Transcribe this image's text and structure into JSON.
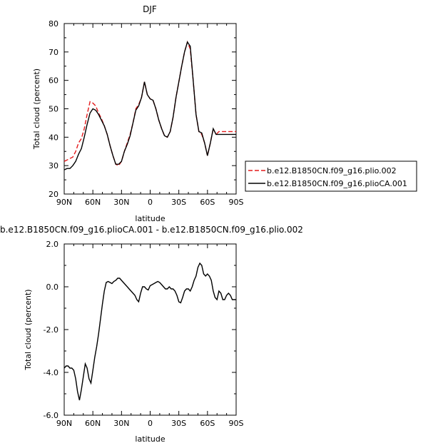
{
  "chart_data": [
    {
      "type": "line",
      "title": "DJF",
      "xlabel": "latitude",
      "ylabel": "Total cloud (percent)",
      "xlim": [
        90,
        -90
      ],
      "ylim": [
        20,
        80
      ],
      "xticks": [
        90,
        60,
        30,
        0,
        -30,
        -60,
        -90
      ],
      "xtick_labels": [
        "90N",
        "60N",
        "30N",
        "0",
        "30S",
        "60S",
        "90S"
      ],
      "yticks": [
        20,
        30,
        40,
        50,
        60,
        70,
        80
      ],
      "ytick_labels": [
        "20",
        "30",
        "40",
        "50",
        "60",
        "70",
        "80"
      ],
      "legend_position": "right",
      "series": [
        {
          "name": "b.e12.B1850CN.f09_g16.plio.002",
          "color": "#e41a1c",
          "dash": true,
          "x": [
            90,
            87,
            84,
            81,
            78,
            75,
            72,
            69,
            66,
            63,
            60,
            57,
            54,
            51,
            48,
            45,
            42,
            39,
            36,
            33,
            30,
            27,
            24,
            21,
            18,
            15,
            12,
            9,
            6,
            3,
            0,
            -3,
            -6,
            -9,
            -12,
            -15,
            -18,
            -21,
            -24,
            -27,
            -30,
            -33,
            -36,
            -39,
            -42,
            -45,
            -48,
            -51,
            -54,
            -57,
            -60,
            -63,
            -66,
            -69,
            -72,
            -75,
            -78,
            -81,
            -84,
            -87,
            -90
          ],
          "y": [
            31.5,
            32,
            32.5,
            33,
            35,
            38,
            39.5,
            43,
            48,
            52.5,
            52,
            51,
            48.5,
            46.5,
            44,
            41,
            37,
            33.5,
            30.5,
            30,
            31.5,
            35,
            38,
            41,
            45,
            50,
            51.5,
            54,
            59.5,
            55,
            53.5,
            53,
            50,
            46,
            43,
            40.5,
            40,
            42,
            47,
            54,
            59.5,
            65,
            70,
            73.5,
            71,
            60,
            48,
            42,
            41,
            38,
            33.5,
            38,
            43,
            41,
            42,
            42,
            42,
            42,
            42,
            42,
            42
          ]
        },
        {
          "name": "b.e12.B1850CN.f09_g16.plioCA.001",
          "color": "#000000",
          "dash": false,
          "x": [
            90,
            87,
            84,
            81,
            78,
            75,
            72,
            69,
            66,
            63,
            60,
            57,
            54,
            51,
            48,
            45,
            42,
            39,
            36,
            33,
            30,
            27,
            24,
            21,
            18,
            15,
            12,
            9,
            6,
            3,
            0,
            -3,
            -6,
            -9,
            -12,
            -15,
            -18,
            -21,
            -24,
            -27,
            -30,
            -33,
            -36,
            -39,
            -42,
            -45,
            -48,
            -51,
            -54,
            -57,
            -60,
            -63,
            -66,
            -69,
            -72,
            -75,
            -78,
            -81,
            -84,
            -87,
            -90
          ],
          "y": [
            28.5,
            29,
            29,
            30,
            31.5,
            34,
            36,
            40,
            44.5,
            48.5,
            50,
            49.5,
            48,
            46,
            44,
            41,
            37,
            33.5,
            30.5,
            30.5,
            31.5,
            35,
            37.5,
            40.5,
            45,
            49.5,
            51,
            54,
            59.5,
            55,
            53.5,
            53,
            50,
            46,
            43,
            40.5,
            40,
            42,
            47,
            54,
            59.5,
            65,
            70,
            73.5,
            72,
            60,
            48,
            42,
            41.5,
            38,
            33.5,
            38,
            43,
            41,
            41,
            41,
            41,
            41,
            41,
            41,
            41
          ]
        }
      ]
    },
    {
      "type": "line",
      "title": "b.e12.B1850CN.f09_g16.plioCA.001 - b.e12.B1850CN.f09_g16.plio.002",
      "xlabel": "latitude",
      "ylabel": "Total cloud (percent)",
      "xlim": [
        90,
        -90
      ],
      "ylim": [
        -6,
        2
      ],
      "xticks": [
        90,
        60,
        30,
        0,
        -30,
        -60,
        -90
      ],
      "xtick_labels": [
        "90N",
        "60N",
        "30N",
        "0",
        "30S",
        "60S",
        "90S"
      ],
      "yticks": [
        -6,
        -4,
        -2,
        0,
        2
      ],
      "ytick_labels": [
        "-6.0",
        "-4.0",
        "-2.0",
        "0.0",
        "2.0"
      ],
      "series": [
        {
          "color": "#000000",
          "x": [
            90,
            88,
            86,
            84,
            82,
            80,
            78,
            76,
            74,
            72,
            70,
            68,
            66,
            64,
            62,
            60,
            58,
            56,
            54,
            52,
            50,
            48,
            46,
            44,
            42,
            40,
            38,
            36,
            34,
            32,
            30,
            28,
            26,
            24,
            22,
            20,
            18,
            16,
            14,
            12,
            10,
            8,
            6,
            4,
            2,
            0,
            -2,
            -4,
            -6,
            -8,
            -10,
            -12,
            -14,
            -16,
            -18,
            -20,
            -22,
            -24,
            -26,
            -28,
            -30,
            -32,
            -34,
            -36,
            -38,
            -40,
            -42,
            -44,
            -46,
            -48,
            -50,
            -52,
            -54,
            -56,
            -58,
            -60,
            -62,
            -64,
            -66,
            -68,
            -70,
            -72,
            -74,
            -76,
            -78,
            -80,
            -82,
            -84,
            -86,
            -88,
            -90
          ],
          "y": [
            -3.8,
            -3.7,
            -3.7,
            -3.8,
            -3.8,
            -3.9,
            -4.3,
            -4.9,
            -5.3,
            -4.8,
            -4.2,
            -3.6,
            -3.8,
            -4.3,
            -4.5,
            -3.9,
            -3.3,
            -2.8,
            -2.2,
            -1.5,
            -0.8,
            -0.2,
            0.2,
            0.25,
            0.2,
            0.15,
            0.25,
            0.3,
            0.4,
            0.4,
            0.3,
            0.2,
            0.1,
            0,
            -0.1,
            -0.2,
            -0.3,
            -0.4,
            -0.6,
            -0.7,
            -0.3,
            0.0,
            0.0,
            -0.1,
            -0.15,
            0.05,
            0.1,
            0.15,
            0.2,
            0.25,
            0.2,
            0.1,
            0.0,
            -0.1,
            -0.1,
            0.0,
            -0.1,
            -0.1,
            -0.2,
            -0.4,
            -0.7,
            -0.75,
            -0.5,
            -0.2,
            -0.1,
            -0.1,
            -0.2,
            0.0,
            0.3,
            0.5,
            0.9,
            1.1,
            1.0,
            0.6,
            0.5,
            0.6,
            0.5,
            0.3,
            -0.2,
            -0.5,
            -0.6,
            -0.2,
            -0.3,
            -0.6,
            -0.6,
            -0.4,
            -0.3,
            -0.4,
            -0.6,
            -0.6,
            -0.6
          ]
        }
      ]
    }
  ]
}
